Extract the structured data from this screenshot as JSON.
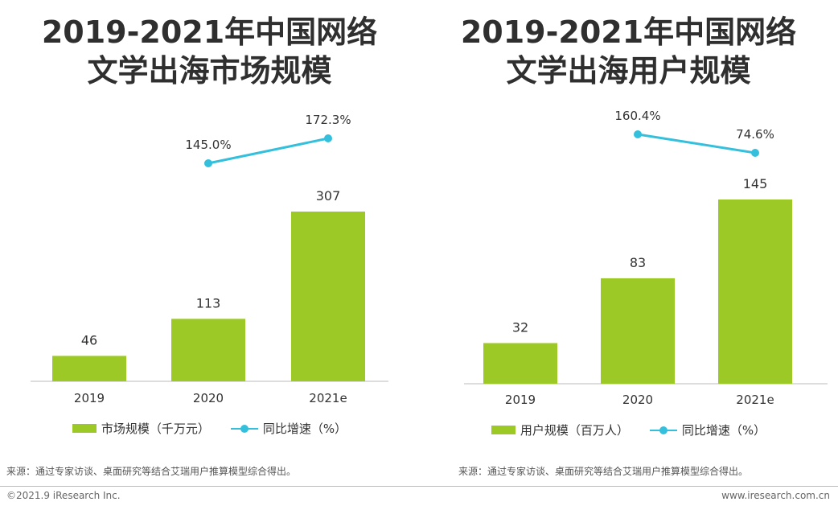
{
  "charts": [
    {
      "id": "market",
      "title_lines": [
        "2019-2021年中国网络",
        "文学出海市场规模"
      ],
      "legend": {
        "bar_label": "市场规模（千万元）",
        "line_label": "同比增速（%）"
      },
      "source": "来源：通过专家访谈、桌面研究等结合艾瑞用户推算模型综合得出。"
    },
    {
      "id": "users",
      "title_lines": [
        "2019-2021年中国网络",
        "文学出海用户规模"
      ],
      "legend": {
        "bar_label": "用户规模（百万人）",
        "line_label": "同比增速（%）"
      },
      "source": "来源：通过专家访谈、桌面研究等结合艾瑞用户推算模型综合得出。"
    }
  ],
  "chart_data": [
    {
      "type": "bar",
      "title": "2019-2021年中国网络文学出海市场规模",
      "categories": [
        "2019",
        "2020",
        "2021e"
      ],
      "series": [
        {
          "name": "市场规模（千万元）",
          "type": "bar",
          "values": [
            46,
            113,
            307
          ]
        },
        {
          "name": "同比增速（%）",
          "type": "line",
          "values": [
            null,
            145.0,
            172.3
          ]
        }
      ],
      "bar_labels": [
        "46",
        "113",
        "307"
      ],
      "line_labels": [
        "",
        "145.0%",
        "172.3%"
      ],
      "legend_position": "bottom",
      "grid": false
    },
    {
      "type": "bar",
      "title": "2019-2021年中国网络文学出海用户规模",
      "categories": [
        "2019",
        "2020",
        "2021e"
      ],
      "series": [
        {
          "name": "用户规模（百万人）",
          "type": "bar",
          "values": [
            32,
            83,
            145
          ]
        },
        {
          "name": "同比增速（%）",
          "type": "line",
          "values": [
            null,
            160.4,
            74.6
          ]
        }
      ],
      "bar_labels": [
        "32",
        "83",
        "145"
      ],
      "line_labels": [
        "",
        "160.4%",
        "74.6%"
      ],
      "legend_position": "bottom",
      "grid": false
    }
  ],
  "footer": {
    "copyright": "©2021.9 iResearch Inc.",
    "website": "www.iresearch.com.cn"
  },
  "colors": {
    "bar": "#9cc925",
    "line": "#34c0dc",
    "axis": "#bbbbbb",
    "text": "#333333"
  }
}
